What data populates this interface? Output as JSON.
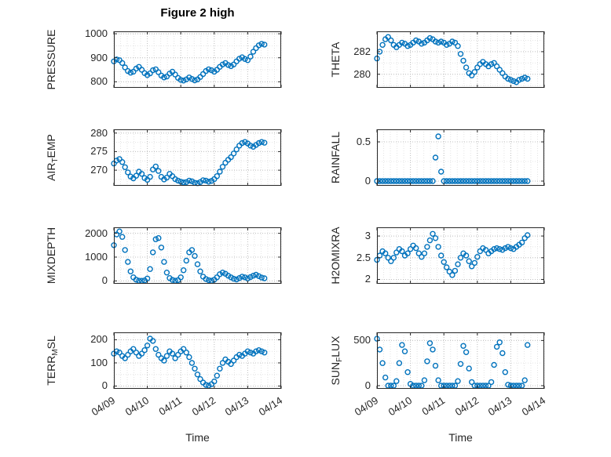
{
  "title": "Figure 2 high",
  "xlabel": "Time",
  "marker_color": "#0072BD",
  "chart_data": {
    "type": "scatter",
    "marker": "open-circle",
    "grid": "dotted major and minor",
    "x_unit": "days since 04/09 00:00",
    "xlim": [
      0,
      5
    ],
    "xtick_labels": [
      "04/09",
      "04/10",
      "04/11",
      "04/12",
      "04/13",
      "04/14"
    ],
    "x_days": [
      0,
      0.0833,
      0.1667,
      0.25,
      0.3333,
      0.4167,
      0.5,
      0.5833,
      0.6667,
      0.75,
      0.8333,
      0.9167,
      1,
      1.0833,
      1.1667,
      1.25,
      1.3333,
      1.4167,
      1.5,
      1.5833,
      1.6667,
      1.75,
      1.8333,
      1.9167,
      2,
      2.0833,
      2.1667,
      2.25,
      2.3333,
      2.4167,
      2.5,
      2.5833,
      2.6667,
      2.75,
      2.8333,
      2.9167,
      3,
      3.0833,
      3.1667,
      3.25,
      3.3333,
      3.4167,
      3.5,
      3.5833,
      3.6667,
      3.75,
      3.8333,
      3.9167,
      4,
      4.0833,
      4.1667,
      4.25,
      4.3333,
      4.4167,
      4.5
    ],
    "panels": [
      {
        "name": "pressure",
        "ylabel_segments": [
          {
            "text": "PRESSURE",
            "sub": false
          }
        ],
        "ylim": [
          775,
          1010
        ],
        "yticks": [
          800,
          900,
          1000
        ],
        "y": [
          885,
          893,
          890,
          878,
          860,
          845,
          838,
          842,
          855,
          862,
          850,
          836,
          828,
          835,
          848,
          852,
          840,
          826,
          818,
          822,
          834,
          842,
          830,
          816,
          808,
          805,
          810,
          818,
          812,
          806,
          810,
          820,
          832,
          845,
          852,
          848,
          842,
          850,
          862,
          872,
          878,
          870,
          865,
          872,
          885,
          896,
          902,
          895,
          890,
          905,
          925,
          940,
          952,
          958,
          955
        ]
      },
      {
        "name": "theta",
        "ylabel_segments": [
          {
            "text": "THETA",
            "sub": false
          }
        ],
        "ylim": [
          278.8,
          283.8
        ],
        "yticks": [
          280,
          282
        ],
        "y": [
          281.4,
          282.0,
          282.6,
          283.1,
          283.3,
          283.0,
          282.6,
          282.4,
          282.6,
          282.8,
          282.7,
          282.5,
          282.6,
          282.8,
          283.0,
          282.9,
          282.7,
          282.8,
          283.0,
          283.2,
          283.1,
          282.9,
          282.8,
          282.9,
          282.8,
          282.6,
          282.7,
          282.9,
          282.8,
          282.5,
          281.8,
          281.2,
          280.6,
          280.1,
          279.9,
          280.2,
          280.6,
          280.9,
          281.1,
          280.9,
          280.7,
          280.9,
          281.0,
          280.7,
          280.4,
          280.1,
          279.8,
          279.6,
          279.5,
          279.4,
          279.3,
          279.5,
          279.6,
          279.7,
          279.6
        ]
      },
      {
        "name": "air-temp",
        "ylabel_segments": [
          {
            "text": "AIR",
            "sub": false
          },
          {
            "text": "T",
            "sub": true
          },
          {
            "text": "EMP",
            "sub": false
          }
        ],
        "ylim": [
          265.8,
          281
        ],
        "yticks": [
          270,
          275,
          280
        ],
        "y": [
          271.8,
          272.6,
          273.0,
          272.2,
          270.8,
          269.4,
          268.3,
          267.8,
          268.5,
          269.6,
          269.0,
          267.9,
          267.4,
          268.2,
          270.2,
          271.0,
          269.8,
          268.2,
          267.5,
          268.0,
          269.0,
          268.4,
          267.6,
          267.2,
          266.9,
          266.7,
          266.8,
          267.2,
          267.0,
          266.6,
          266.5,
          266.8,
          267.3,
          267.2,
          266.9,
          267.1,
          267.6,
          268.4,
          269.6,
          270.9,
          272.0,
          272.8,
          273.5,
          274.5,
          275.6,
          276.6,
          277.3,
          277.6,
          277.2,
          276.6,
          276.3,
          276.8,
          277.3,
          277.6,
          277.4
        ]
      },
      {
        "name": "rainfall",
        "ylabel_segments": [
          {
            "text": "RAINFALL",
            "sub": false
          }
        ],
        "ylim": [
          -0.06,
          0.66
        ],
        "yticks": [
          0,
          0.5
        ],
        "y": [
          0,
          0,
          0,
          0,
          0,
          0,
          0,
          0,
          0,
          0,
          0,
          0,
          0,
          0,
          0,
          0,
          0,
          0,
          0,
          0,
          0,
          0.3,
          0.57,
          0.12,
          0,
          0,
          0,
          0,
          0,
          0,
          0,
          0,
          0,
          0,
          0,
          0,
          0,
          0,
          0,
          0,
          0,
          0,
          0,
          0,
          0,
          0,
          0,
          0,
          0,
          0,
          0,
          0,
          0,
          0,
          0
        ]
      },
      {
        "name": "mixdepth",
        "ylabel_segments": [
          {
            "text": "MIXDEPTH",
            "sub": false
          }
        ],
        "ylim": [
          -120,
          2250
        ],
        "yticks": [
          0,
          1000,
          2000
        ],
        "y": [
          1500,
          1950,
          2080,
          1850,
          1300,
          800,
          400,
          150,
          50,
          10,
          5,
          20,
          100,
          500,
          1200,
          1750,
          1800,
          1400,
          800,
          350,
          120,
          40,
          10,
          30,
          150,
          450,
          850,
          1200,
          1300,
          1050,
          700,
          400,
          180,
          80,
          30,
          10,
          50,
          150,
          280,
          350,
          300,
          220,
          150,
          90,
          60,
          120,
          180,
          150,
          100,
          160,
          220,
          260,
          200,
          140,
          110
        ]
      },
      {
        "name": "h2omixra",
        "ylabel_segments": [
          {
            "text": "H2OMIXRA",
            "sub": false
          }
        ],
        "ylim": [
          1.9,
          3.2
        ],
        "yticks": [
          2,
          2.5,
          3
        ],
        "y": [
          2.45,
          2.55,
          2.65,
          2.6,
          2.5,
          2.42,
          2.5,
          2.62,
          2.7,
          2.65,
          2.55,
          2.6,
          2.7,
          2.78,
          2.72,
          2.6,
          2.52,
          2.6,
          2.75,
          2.9,
          3.05,
          2.95,
          2.75,
          2.55,
          2.4,
          2.28,
          2.18,
          2.1,
          2.2,
          2.35,
          2.5,
          2.6,
          2.55,
          2.42,
          2.3,
          2.38,
          2.52,
          2.65,
          2.72,
          2.68,
          2.6,
          2.65,
          2.7,
          2.72,
          2.7,
          2.68,
          2.72,
          2.75,
          2.72,
          2.7,
          2.75,
          2.8,
          2.85,
          2.95,
          3.02
        ]
      },
      {
        "name": "terr-msl",
        "ylabel_segments": [
          {
            "text": "TERR",
            "sub": false
          },
          {
            "text": "M",
            "sub": true
          },
          {
            "text": "SL",
            "sub": false
          }
        ],
        "ylim": [
          -12,
          232
        ],
        "yticks": [
          0,
          100,
          200
        ],
        "y": [
          140,
          150,
          145,
          130,
          120,
          135,
          150,
          160,
          145,
          130,
          140,
          155,
          175,
          205,
          195,
          160,
          135,
          120,
          110,
          130,
          150,
          140,
          120,
          135,
          150,
          160,
          145,
          125,
          100,
          75,
          50,
          30,
          15,
          5,
          2,
          8,
          20,
          45,
          75,
          100,
          115,
          105,
          95,
          110,
          125,
          135,
          130,
          140,
          150,
          145,
          140,
          150,
          155,
          150,
          145
        ]
      },
      {
        "name": "sun-flux",
        "ylabel_segments": [
          {
            "text": "SUN",
            "sub": false
          },
          {
            "text": "F",
            "sub": true
          },
          {
            "text": "LUX",
            "sub": false
          }
        ],
        "ylim": [
          -35,
          590
        ],
        "yticks": [
          0,
          500
        ],
        "y": [
          520,
          400,
          250,
          90,
          0,
          0,
          0,
          50,
          250,
          450,
          380,
          150,
          20,
          0,
          0,
          0,
          0,
          60,
          270,
          470,
          400,
          220,
          60,
          0,
          0,
          0,
          0,
          0,
          0,
          50,
          240,
          440,
          370,
          190,
          40,
          0,
          0,
          0,
          0,
          0,
          0,
          40,
          230,
          430,
          480,
          360,
          150,
          10,
          0,
          0,
          0,
          0,
          0,
          60,
          450
        ]
      }
    ]
  }
}
